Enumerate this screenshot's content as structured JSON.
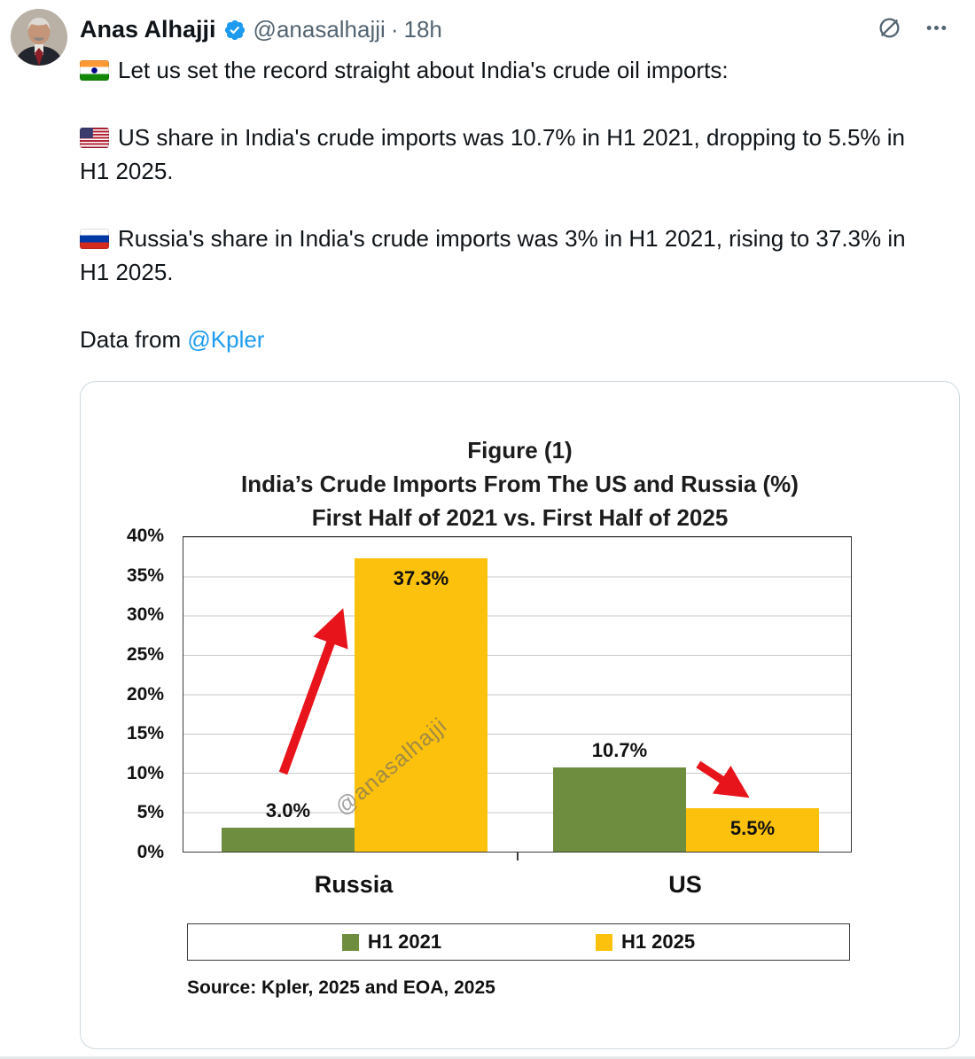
{
  "tweet": {
    "author": "Anas Alhajji",
    "handle": "@anasalhajji",
    "separator": "·",
    "time": "18h",
    "paragraphs": {
      "p1": "Let us set the record straight about India's crude oil imports:",
      "p2": "US share in India's crude imports was 10.7% in H1 2021, dropping to 5.5% in H1 2025.",
      "p3": "Russia's share in India's crude imports was 3% in H1 2021, rising to 37.3% in H1 2025.",
      "p4_prefix": "Data from ",
      "p4_link": "@Kpler"
    },
    "icons": {
      "verified": "verified-badge-icon",
      "top_right": [
        "grok-icon",
        "more-icon"
      ],
      "flags": [
        "india-flag-icon",
        "us-flag-icon",
        "russia-flag-icon"
      ]
    },
    "colors": {
      "link_blue": "#1d9bf0",
      "meta_gray": "#536471"
    }
  },
  "chart_data": {
    "type": "bar",
    "title_lines": [
      "Figure (1)",
      "India’s Crude Imports From The US and Russia (%)",
      "First Half of 2021 vs. First Half of 2025"
    ],
    "categories": [
      "Russia",
      "US"
    ],
    "series": [
      {
        "name": "H1 2021",
        "color": "#6f8d3f",
        "values": [
          3.0,
          10.7
        ],
        "labels": [
          "3.0%",
          "10.7%"
        ]
      },
      {
        "name": "H1 2025",
        "color": "#fcc10c",
        "values": [
          37.3,
          5.5
        ],
        "labels": [
          "37.3%",
          "5.5%"
        ]
      }
    ],
    "ylim": [
      0,
      40
    ],
    "ytick_step": 5,
    "yticks": [
      "40%",
      "35%",
      "30%",
      "25%",
      "20%",
      "15%",
      "10%",
      "5%",
      "0%"
    ],
    "grid": true,
    "legend_position": "bottom",
    "watermark": "@anasalhajji",
    "annotations": [
      "red arrow up from Russia H1 2021 to H1 2025 bar",
      "red arrow down from US H1 2021 to H1 2025 bar"
    ],
    "arrow_color": "#e8141c",
    "source": "Source: Kpler, 2025 and EOA, 2025"
  }
}
